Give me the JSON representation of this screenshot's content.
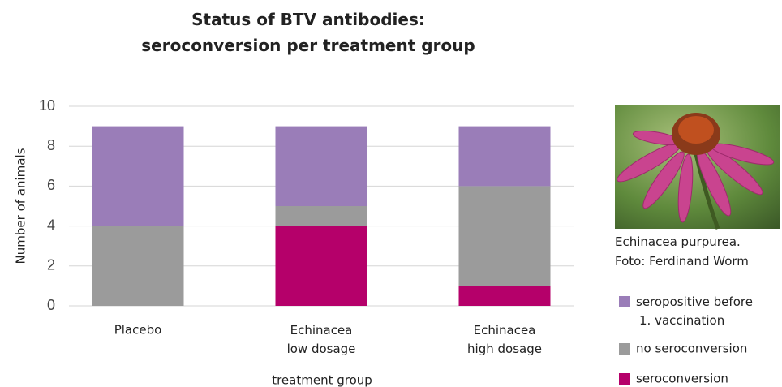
{
  "chart_data": {
    "type": "stacked_bar",
    "title": "Status of BTV antibodies:\nseroconversion per treatment group",
    "x_label": "treatment group",
    "y_label": "Number of animals",
    "categories": [
      "Placebo",
      "Echinacea\nlow dosage",
      "Echinacea\nhigh dosage"
    ],
    "series": [
      {
        "name": "seroconversion",
        "color": "#b5006a",
        "values": [
          0,
          4,
          1
        ]
      },
      {
        "name": "no seroconversion",
        "color": "#9b9b9b",
        "values": [
          4,
          1,
          5
        ]
      },
      {
        "name": "seropositive before\n1. vaccination",
        "color": "#9a7db8",
        "values": [
          5,
          4,
          3
        ]
      }
    ],
    "ylim": [
      0,
      10
    ],
    "yticks": [
      0,
      2,
      4,
      6,
      8,
      10
    ],
    "grid": true,
    "legend": "right",
    "image_caption": "Echinacea purpurea.\nFoto: Ferdinand Worm"
  }
}
